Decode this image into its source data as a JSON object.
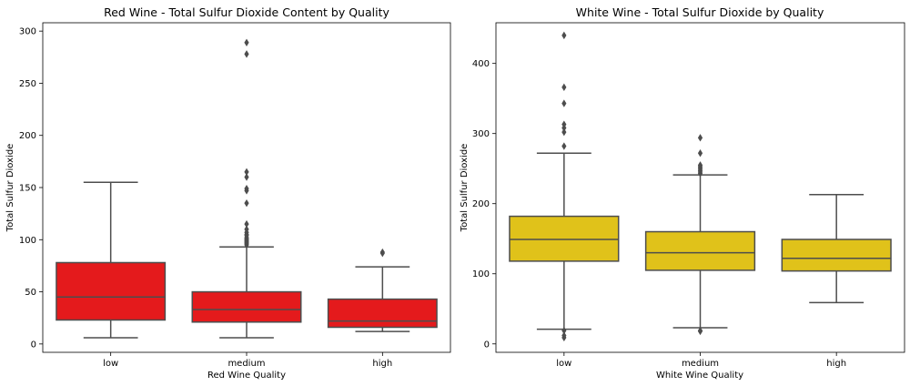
{
  "colors": {
    "red_box": "#e41a1c",
    "white_box": "#e0c21a",
    "line": "#4d4d4d",
    "outlier": "#4d4d4d"
  },
  "chart_data": [
    {
      "type": "box",
      "title": "Red Wine - Total Sulfur Dioxide Content by Quality",
      "xlabel": "Red Wine Quality",
      "ylabel": "Total Sulfur Dioxide",
      "ylim": [
        -8,
        308
      ],
      "yticks": [
        0,
        50,
        100,
        150,
        200,
        250,
        300
      ],
      "categories": [
        "low",
        "medium",
        "high"
      ],
      "boxes": [
        {
          "category": "low",
          "whisker_low": 6,
          "q1": 23,
          "median": 45,
          "q3": 78,
          "whisker_high": 155,
          "outliers": []
        },
        {
          "category": "medium",
          "whisker_low": 6,
          "q1": 21,
          "median": 33,
          "q3": 50,
          "whisker_high": 93,
          "outliers": [
            95,
            96,
            97,
            98,
            99,
            100,
            101,
            102,
            104,
            105,
            107,
            110,
            115,
            135,
            147,
            149,
            160,
            165,
            278,
            289
          ]
        },
        {
          "category": "high",
          "whisker_low": 12,
          "q1": 16,
          "median": 22,
          "q3": 43,
          "whisker_high": 74,
          "outliers": [
            87,
            88
          ]
        }
      ]
    },
    {
      "type": "box",
      "title": "White Wine - Total Sulfur Dioxide by Quality",
      "xlabel": "White Wine Quality",
      "ylabel": "Total Sulfur Dioxide",
      "ylim": [
        -12,
        458
      ],
      "yticks": [
        0,
        100,
        200,
        300,
        400
      ],
      "categories": [
        "low",
        "medium",
        "high"
      ],
      "boxes": [
        {
          "category": "low",
          "whisker_low": 21,
          "q1": 118,
          "median": 149,
          "q3": 182,
          "whisker_high": 272,
          "outliers": [
            9,
            12,
            19,
            282,
            302,
            308,
            313,
            343,
            366,
            440
          ]
        },
        {
          "category": "medium",
          "whisker_low": 23,
          "q1": 105,
          "median": 130,
          "q3": 160,
          "whisker_high": 241,
          "outliers": [
            18,
            19,
            243,
            245,
            247,
            249,
            251,
            253,
            255,
            272,
            294
          ]
        },
        {
          "category": "high",
          "whisker_low": 59,
          "q1": 104,
          "median": 122,
          "q3": 149,
          "whisker_high": 213,
          "outliers": []
        }
      ]
    }
  ]
}
